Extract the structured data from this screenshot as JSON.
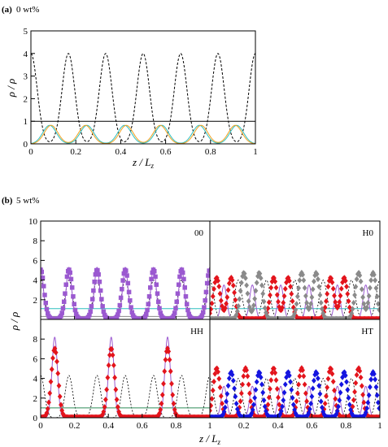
{
  "chart_data": [
    {
      "type": "line",
      "panel_label": "(a)",
      "title": "0 wt%",
      "xlabel": "z / L",
      "xlabel_sub": "z",
      "ylabel": "ρ / ρ",
      "ylabel_sub": "i",
      "xlim": [
        0,
        1
      ],
      "ylim": [
        0,
        5
      ],
      "xticks": [
        "0",
        "0.2",
        "0.4",
        "0.6",
        "0.8",
        "1"
      ],
      "yticks": [
        "0",
        "1",
        "2",
        "3",
        "4",
        "5"
      ],
      "series": [
        {
          "style": "dashed",
          "color": "#000000",
          "peaks": [
            0.0,
            0.167,
            0.333,
            0.5,
            0.667,
            0.833,
            1.0
          ],
          "peak_value": 4.0,
          "width": 0.028
        },
        {
          "style": "solid",
          "color": "#000000",
          "constant": 1.0
        },
        {
          "style": "solid",
          "color": "#2fbfbf",
          "peaks": [
            0.083,
            0.25,
            0.417,
            0.583,
            0.75,
            0.917
          ],
          "peak_value": 0.82,
          "width": 0.03
        },
        {
          "style": "solid",
          "color": "#f2a01e",
          "peaks": [
            0.09,
            0.243,
            0.425,
            0.576,
            0.758,
            0.91
          ],
          "peak_value": 0.82,
          "width": 0.03
        }
      ]
    },
    {
      "type": "line",
      "panel_label": "(b)",
      "title": "5 wt%",
      "xlabel": "z / L",
      "xlabel_sub": "z",
      "ylabel": "ρ / ρ",
      "ylabel_sub": "i",
      "xlim": [
        0,
        1
      ],
      "top_ylim": [
        0,
        10
      ],
      "bottom_ylim": [
        0,
        10
      ],
      "xticks": [
        "0",
        "0.2",
        "0.4",
        "0.6",
        "0.8",
        "1"
      ],
      "xticks_right": [
        "0",
        "0.2",
        "0.4",
        "0.6",
        "0.8",
        "1"
      ],
      "yticks_top": [
        "0",
        "2",
        "4",
        "6",
        "8",
        "10"
      ],
      "yticks_bottom": [
        "0",
        "2",
        "4",
        "6",
        "8"
      ],
      "subpanels": [
        {
          "label": "00",
          "background": {
            "peaks": [
              0.0,
              0.167,
              0.333,
              0.5,
              0.667,
              0.833,
              1.0
            ],
            "peak_value": 4.0
          },
          "fit": {
            "color": "#9b59d0",
            "peaks": [
              0.0,
              0.167,
              0.333,
              0.5,
              0.667,
              0.833,
              1.0
            ],
            "peak_value": 5.3
          },
          "markers": [
            {
              "color": "#9b59d0",
              "shape": "square",
              "peaks": [
                0.0,
                0.167,
                0.333,
                0.5,
                0.667,
                0.833,
                1.0
              ],
              "peak_value": 5.0
            }
          ],
          "baselines": [
            {
              "color": "#888888",
              "value": 0.3
            },
            {
              "color": "#2fbfbf",
              "value": 1.1
            }
          ]
        },
        {
          "label": "H0",
          "background": {
            "peaks": [
              0.0,
              0.167,
              0.333,
              0.5,
              0.667,
              0.833,
              1.0
            ],
            "peak_value": 4.0
          },
          "fit": {
            "color": "#9b59d0",
            "peaks": [
              0.083,
              0.25,
              0.417,
              0.583,
              0.75,
              0.917
            ],
            "peak_value": 3.5
          },
          "markers": [
            {
              "color": "#e3141c",
              "shape": "diamond",
              "peaks": [
                0.04,
                0.125,
                0.375,
                0.46,
                0.71,
                0.79
              ],
              "peak_value": 4.2
            },
            {
              "color": "#8a8a8a",
              "shape": "diamond",
              "peaks": [
                0.2,
                0.29,
                0.54,
                0.625,
                0.875,
                0.96
              ],
              "peak_value": 4.7
            }
          ],
          "baselines": [
            {
              "color": "#2fbfbf",
              "value": 1.1
            }
          ]
        },
        {
          "label": "HH",
          "background": {
            "peaks": [
              0.0,
              0.167,
              0.333,
              0.5,
              0.667,
              0.833,
              1.0
            ],
            "peak_value": 4.3
          },
          "fit": {
            "color": "#9b59d0",
            "peaks": [
              0.083,
              0.417,
              0.75
            ],
            "peak_value": 8.2
          },
          "markers": [
            {
              "color": "#e3141c",
              "shape": "diamond",
              "peaks": [
                0.083,
                0.417,
                0.75
              ],
              "peak_value": 7.0
            }
          ],
          "baselines": [
            {
              "color": "#2e8b57",
              "value": 1.0
            }
          ]
        },
        {
          "label": "HT",
          "background": {
            "peaks": [
              0.0,
              0.167,
              0.333,
              0.5,
              0.667,
              0.833,
              1.0
            ],
            "peak_value": 4.0
          },
          "fit": {
            "color": "#9b59d0",
            "peaks": [
              0.083,
              0.25,
              0.417,
              0.583,
              0.75,
              0.917
            ],
            "peak_value": 3.2
          },
          "markers": [
            {
              "color": "#e3141c",
              "shape": "diamond",
              "peaks": [
                0.04,
                0.21,
                0.375,
                0.54,
                0.71,
                0.875
              ],
              "peak_value": 5.0
            },
            {
              "color": "#1414e0",
              "shape": "diamond",
              "peaks": [
                0.125,
                0.29,
                0.46,
                0.625,
                0.79,
                0.96
              ],
              "peak_value": 4.6
            }
          ],
          "baselines": []
        }
      ]
    }
  ]
}
